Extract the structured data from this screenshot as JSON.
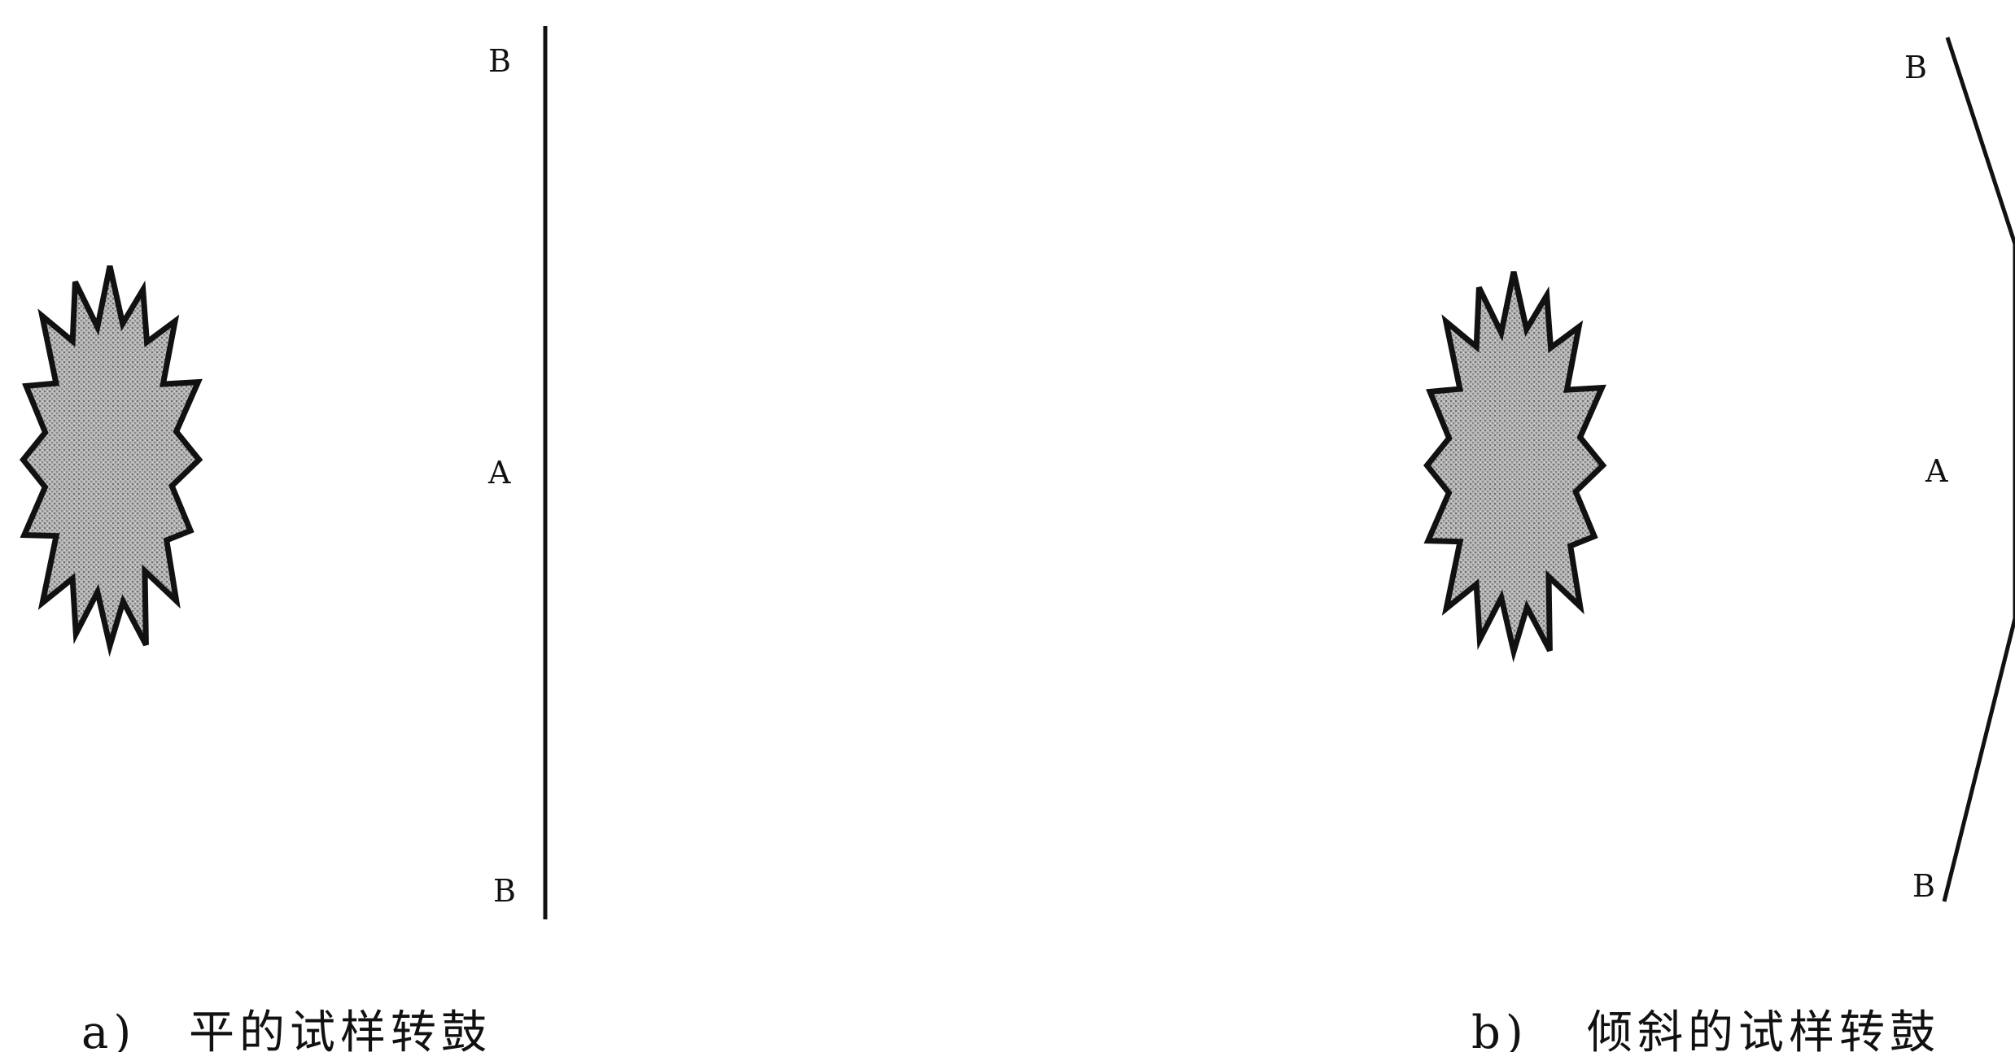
{
  "panel_a": {
    "label_top": "B",
    "label_middle": "A",
    "label_bottom": "B",
    "caption_letter": "a)",
    "caption_text": "平的试样转鼓"
  },
  "panel_b": {
    "label_top": "B",
    "label_middle": "A",
    "label_bottom": "B",
    "caption_letter": "b)",
    "caption_text": "倾斜的试样转鼓"
  },
  "colors": {
    "ink": "#111111",
    "flame_fill": "#a9a9a9",
    "background": "#ffffff"
  },
  "icons": [
    "flame-icon",
    "flame-icon"
  ]
}
